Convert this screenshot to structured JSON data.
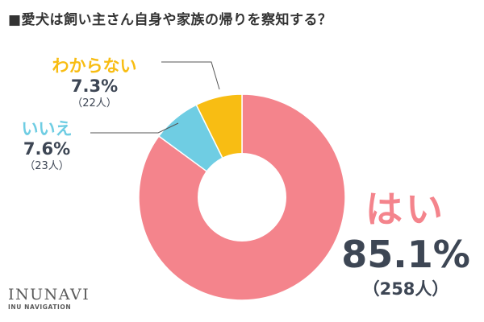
{
  "title": "■愛犬は飼い主さん自身や家族の帰りを察知する？",
  "chart_data": {
    "type": "pie",
    "donut": true,
    "slices": [
      {
        "label": "はい",
        "percent": 85.1,
        "percent_label": "85.1%",
        "count_label": "（258人）",
        "count": 258,
        "color": "#f4848c"
      },
      {
        "label": "いいえ",
        "percent": 7.6,
        "percent_label": "7.6%",
        "count_label": "（23人）",
        "count": 23,
        "color": "#6fcde3"
      },
      {
        "label": "わからない",
        "percent": 7.3,
        "percent_label": "7.3%",
        "count_label": "（22人）",
        "count": 22,
        "color": "#f8bd13"
      }
    ]
  },
  "logo": {
    "main": "INUNAVI",
    "sub": "INU NAVIGATION"
  }
}
